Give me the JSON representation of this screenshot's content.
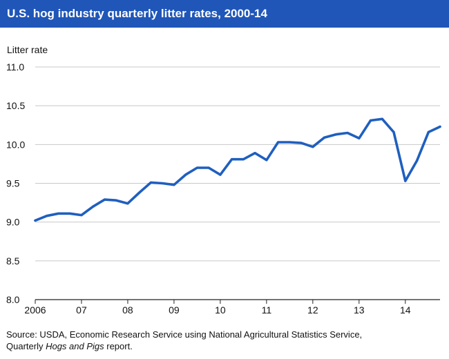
{
  "title": "U.S. hog industry quarterly litter rates, 2000-14",
  "source": {
    "line1": "Source: USDA, Economic Research Service using National Agricultural Statistics Service,",
    "line2_prefix": "Quarterly ",
    "line2_italic": "Hogs and Pigs",
    "line2_suffix": " report."
  },
  "colors": {
    "title_bg": "#1f56b8",
    "line": "#1f5fbf",
    "grid": "#c8c8c8"
  },
  "chart_data": {
    "type": "line",
    "title": "U.S. hog industry quarterly litter rates, 2000-14",
    "ylabel": "Litter rate",
    "xlabel": "",
    "ylim": [
      8.0,
      11.0
    ],
    "y_ticks": [
      "8.0",
      "8.5",
      "9.0",
      "9.5",
      "10.0",
      "10.5",
      "11.0"
    ],
    "x_tick_labels": [
      "2006",
      "07",
      "08",
      "09",
      "10",
      "11",
      "12",
      "13",
      "14"
    ],
    "grid": "horizontal",
    "legend": "none",
    "x": [
      "2006 Q1",
      "2006 Q2",
      "2006 Q3",
      "2006 Q4",
      "2007 Q1",
      "2007 Q2",
      "2007 Q3",
      "2007 Q4",
      "2008 Q1",
      "2008 Q2",
      "2008 Q3",
      "2008 Q4",
      "2009 Q1",
      "2009 Q2",
      "2009 Q3",
      "2009 Q4",
      "2010 Q1",
      "2010 Q2",
      "2010 Q3",
      "2010 Q4",
      "2011 Q1",
      "2011 Q2",
      "2011 Q3",
      "2011 Q4",
      "2012 Q1",
      "2012 Q2",
      "2012 Q3",
      "2012 Q4",
      "2013 Q1",
      "2013 Q2",
      "2013 Q3",
      "2013 Q4",
      "2014 Q1",
      "2014 Q2",
      "2014 Q3",
      "2014 Q4"
    ],
    "series": [
      {
        "values": [
          9.02,
          9.08,
          9.11,
          9.11,
          9.09,
          9.2,
          9.29,
          9.28,
          9.24,
          9.38,
          9.51,
          9.5,
          9.48,
          9.61,
          9.7,
          9.7,
          9.61,
          9.81,
          9.81,
          9.89,
          9.8,
          10.03,
          10.03,
          10.02,
          9.97,
          10.09,
          10.13,
          10.15,
          10.08,
          10.31,
          10.33,
          10.16,
          9.53,
          9.79,
          10.16,
          10.23
        ]
      }
    ]
  }
}
